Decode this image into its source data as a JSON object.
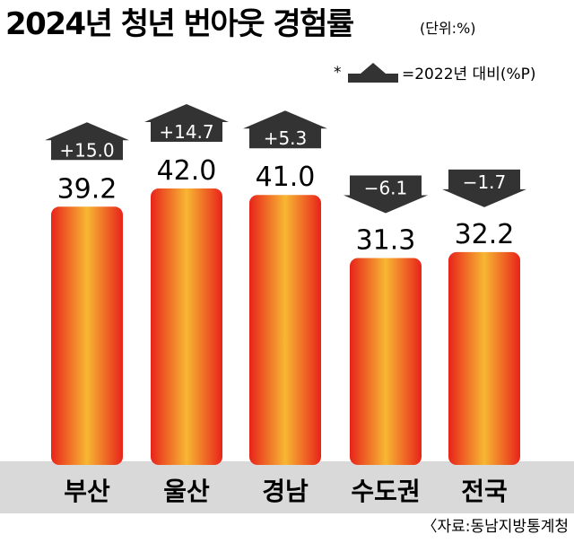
{
  "chart_data": {
    "type": "bar",
    "title": "2024년 청년 번아웃 경험률",
    "unit": "(단위:%)",
    "legend": {
      "marker": "*",
      "text": "=2022년 대비(%P)"
    },
    "categories": [
      "부산",
      "울산",
      "경남",
      "수도권",
      "전국"
    ],
    "values": [
      39.2,
      42.0,
      41.0,
      31.3,
      32.2
    ],
    "value_labels": [
      "39.2",
      "42.0",
      "41.0",
      "31.3",
      "32.2"
    ],
    "changes": [
      15.0,
      14.7,
      5.3,
      -6.1,
      -1.7
    ],
    "change_labels": [
      "+15.0",
      "+14.7",
      "+5.3",
      "−6.1",
      "−1.7"
    ],
    "ylim": [
      0,
      42
    ],
    "source": "〈자료:동남지방통계청",
    "colors": {
      "bar_edge": "#e8231a",
      "bar_center": "#f7b733",
      "arrow": "#333333",
      "axis_band": "#d9d9d9"
    }
  }
}
